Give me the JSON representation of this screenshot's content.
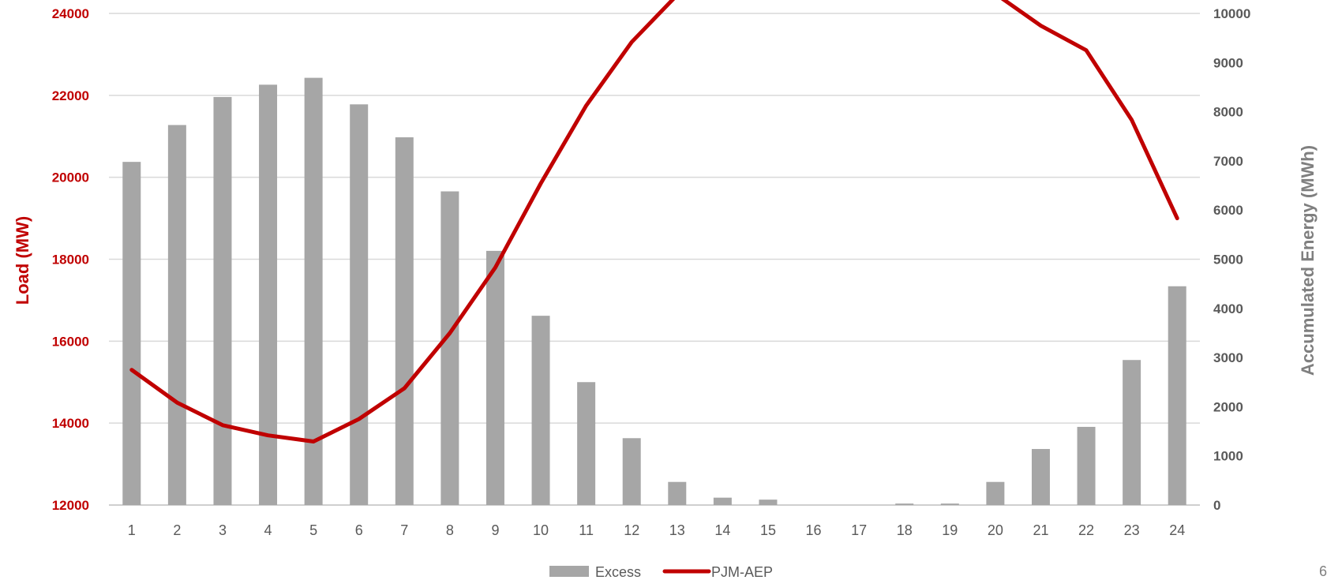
{
  "chart_data": {
    "type": "bar",
    "title": "",
    "categories": [
      "1",
      "2",
      "3",
      "4",
      "5",
      "6",
      "7",
      "8",
      "9",
      "10",
      "11",
      "12",
      "13",
      "14",
      "15",
      "16",
      "17",
      "18",
      "19",
      "20",
      "21",
      "22",
      "23",
      "24"
    ],
    "series": [
      {
        "name": "Excess",
        "type": "bar",
        "axis": "right",
        "color": "#a6a6a6",
        "values": [
          6980,
          7730,
          8300,
          8550,
          8690,
          8150,
          7480,
          6380,
          5170,
          3850,
          2500,
          1360,
          470,
          150,
          110,
          0,
          0,
          30,
          30,
          470,
          1140,
          1590,
          2950,
          4450
        ]
      },
      {
        "name": "PJM-AEP",
        "type": "line",
        "axis": "left",
        "color": "#c00000",
        "values": [
          15300,
          14500,
          13950,
          13700,
          13550,
          14100,
          14850,
          16200,
          17800,
          19850,
          21750,
          23300,
          24450,
          24820,
          24860,
          25000,
          25000,
          24950,
          24950,
          24480,
          23700,
          23100,
          21400,
          19000
        ]
      }
    ],
    "left_axis": {
      "label": "Load (MW)",
      "ylim": [
        12000,
        24000
      ],
      "ticks": [
        "12000",
        "14000",
        "16000",
        "18000",
        "20000",
        "22000",
        "24000"
      ]
    },
    "right_axis": {
      "label": "Accumulated Energy (MWh)",
      "ylim": [
        0,
        10000
      ],
      "ticks": [
        "0",
        "1000",
        "2000",
        "3000",
        "4000",
        "5000",
        "6000",
        "7000",
        "8000",
        "9000",
        "10000"
      ]
    },
    "grid": true,
    "legend_position": "bottom"
  },
  "page_number": "6"
}
